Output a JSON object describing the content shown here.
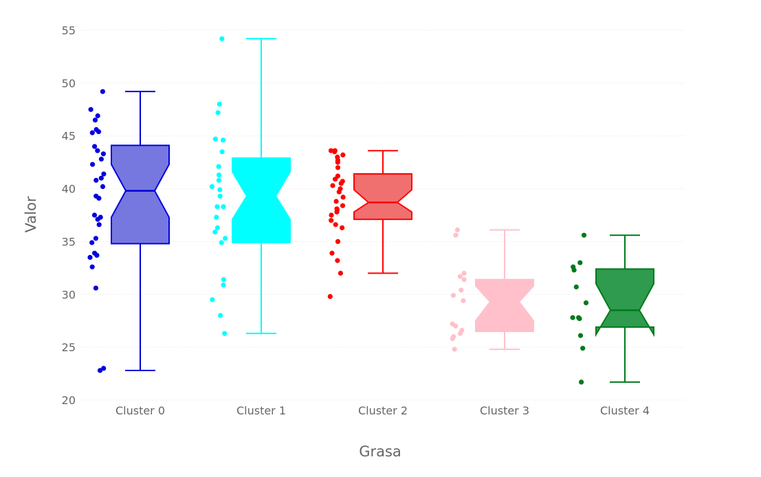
{
  "chart_data": {
    "type": "box",
    "title": "",
    "xlabel": "Grasa",
    "ylabel": "Valor",
    "ylim": [
      20,
      56
    ],
    "yticks": [
      20,
      25,
      30,
      35,
      40,
      45,
      50,
      55
    ],
    "grid": "horizontal",
    "legend": "none",
    "notched": true,
    "boxpoints": "all",
    "categories": [
      "Cluster 0",
      "Cluster 1",
      "Cluster 2",
      "Cluster 3",
      "Cluster 4"
    ],
    "series": [
      {
        "category": "Cluster 0",
        "color": "#0000dd",
        "fill": "#7777e0",
        "min": 22.8,
        "q1": 34.8,
        "median": 39.8,
        "q3": 44.1,
        "max": 49.2,
        "notch": [
          37.3,
          42.3
        ],
        "points": [
          49.2,
          47.5,
          46.9,
          46.5,
          45.6,
          45.4,
          45.3,
          44.0,
          43.6,
          43.3,
          42.8,
          42.3,
          41.4,
          41.0,
          40.8,
          40.2,
          39.3,
          39.1,
          37.5,
          37.3,
          37.1,
          36.6,
          35.3,
          34.9,
          33.9,
          33.7,
          33.5,
          32.6,
          30.6,
          23.0,
          22.8
        ]
      },
      {
        "category": "Cluster 1",
        "color": "#00ffff",
        "fill": "#00ffff",
        "min": 26.3,
        "q1": 34.9,
        "median": 39.3,
        "q3": 42.9,
        "max": 54.2,
        "notch": [
          37.1,
          41.6
        ],
        "points": [
          54.2,
          48.0,
          47.2,
          44.7,
          44.6,
          43.5,
          42.1,
          41.3,
          40.8,
          40.2,
          39.9,
          39.3,
          38.3,
          38.3,
          37.3,
          36.3,
          35.9,
          35.3,
          34.9,
          31.4,
          30.9,
          29.5,
          28.0,
          26.3
        ]
      },
      {
        "category": "Cluster 2",
        "color": "#ff0000",
        "fill": "#f07070",
        "min": 32.0,
        "q1": 37.1,
        "median": 38.7,
        "q3": 41.4,
        "max": 43.6,
        "notch": [
          37.8,
          39.9
        ],
        "points": [
          43.6,
          43.6,
          43.5,
          43.2,
          43.0,
          42.7,
          42.5,
          42.0,
          41.2,
          40.9,
          40.7,
          40.5,
          40.3,
          40.0,
          39.7,
          39.2,
          38.8,
          38.4,
          38.1,
          38.0,
          37.8,
          37.5,
          37.0,
          36.6,
          36.3,
          35.0,
          33.9,
          33.2,
          32.0,
          29.8
        ]
      },
      {
        "category": "Cluster 3",
        "color": "#ffc0cb",
        "fill": "#ffc0cb",
        "min": 24.8,
        "q1": 26.5,
        "median": 29.3,
        "q3": 31.4,
        "max": 36.1,
        "notch": [
          27.5,
          30.8
        ],
        "points": [
          36.1,
          35.6,
          32.0,
          31.7,
          31.4,
          30.4,
          29.9,
          29.4,
          27.2,
          27.0,
          26.6,
          26.3,
          26.0,
          25.8,
          24.8
        ]
      },
      {
        "category": "Cluster 4",
        "color": "#007a1a",
        "fill": "#2e9b4e",
        "min": 21.7,
        "q1": 26.9,
        "median": 28.5,
        "q3": 32.4,
        "max": 35.6,
        "notch": [
          26.2,
          31.0
        ],
        "points": [
          35.6,
          33.0,
          32.6,
          32.3,
          30.7,
          29.2,
          27.8,
          27.8,
          27.7,
          26.1,
          24.9,
          21.7
        ]
      }
    ]
  }
}
